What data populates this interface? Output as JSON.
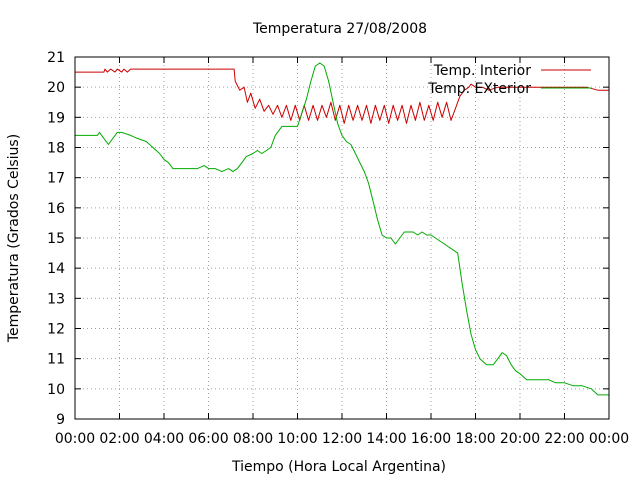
{
  "chart_data": {
    "type": "line",
    "title": "Temperatura 27/08/2008",
    "xlabel": "Tiempo (Hora Local Argentina)",
    "ylabel": "Temperatura (Grados Celsius)",
    "x_ticks": [
      "00:00",
      "02:00",
      "04:00",
      "06:00",
      "08:00",
      "10:00",
      "12:00",
      "14:00",
      "16:00",
      "18:00",
      "20:00",
      "22:00",
      "00:00"
    ],
    "y_ticks": [
      9,
      10,
      11,
      12,
      13,
      14,
      15,
      16,
      17,
      18,
      19,
      20,
      21
    ],
    "ylim": [
      9,
      21
    ],
    "x_unit": "hour of day",
    "xlim": [
      0,
      24
    ],
    "grid": true,
    "legend_position": "top-right",
    "series": [
      {
        "name": "Temp. Interior",
        "color": "#cc0000",
        "x": [
          0.0,
          1.3,
          1.35,
          1.45,
          1.6,
          1.8,
          1.9,
          2.1,
          2.2,
          2.35,
          2.5,
          2.55,
          7.15,
          7.2,
          7.4,
          7.6,
          7.75,
          7.9,
          8.1,
          8.3,
          8.5,
          8.7,
          8.9,
          9.1,
          9.3,
          9.5,
          9.7,
          9.9,
          10.1,
          10.3,
          10.5,
          10.7,
          10.9,
          11.1,
          11.3,
          11.5,
          11.7,
          11.9,
          12.1,
          12.3,
          12.5,
          12.7,
          12.9,
          13.1,
          13.3,
          13.5,
          13.7,
          13.9,
          14.1,
          14.3,
          14.5,
          14.7,
          14.9,
          15.1,
          15.3,
          15.5,
          15.7,
          15.9,
          16.1,
          16.3,
          16.5,
          16.7,
          16.9,
          17.1,
          17.3,
          17.5,
          17.7,
          17.8,
          18.0,
          18.3,
          18.6,
          19.0,
          19.5,
          20.0,
          21.0,
          22.0,
          23.0,
          23.5,
          24.0
        ],
        "y": [
          20.5,
          20.5,
          20.6,
          20.5,
          20.6,
          20.5,
          20.6,
          20.5,
          20.6,
          20.5,
          20.6,
          20.6,
          20.6,
          20.2,
          19.9,
          20.0,
          19.5,
          19.8,
          19.3,
          19.6,
          19.2,
          19.4,
          19.1,
          19.4,
          19.0,
          19.4,
          18.9,
          19.4,
          18.9,
          19.4,
          18.9,
          19.4,
          18.9,
          19.4,
          19.0,
          19.5,
          18.9,
          19.4,
          18.8,
          19.4,
          18.9,
          19.4,
          18.9,
          19.4,
          18.8,
          19.4,
          18.9,
          19.4,
          18.8,
          19.4,
          18.9,
          19.4,
          18.8,
          19.4,
          18.9,
          19.5,
          18.9,
          19.4,
          18.9,
          19.5,
          19.0,
          19.5,
          18.9,
          19.3,
          19.7,
          19.9,
          20.0,
          20.1,
          20.0,
          20.0,
          19.9,
          20.0,
          20.0,
          20.0,
          20.0,
          20.0,
          20.0,
          19.9,
          19.9
        ]
      },
      {
        "name": "Temp. EXterior",
        "color": "#00aa00",
        "x": [
          0.0,
          0.5,
          1.0,
          1.1,
          1.3,
          1.5,
          1.7,
          1.9,
          2.1,
          2.5,
          2.8,
          3.2,
          3.5,
          3.8,
          4.0,
          4.2,
          4.4,
          4.6,
          4.8,
          5.0,
          5.2,
          5.5,
          5.8,
          6.0,
          6.3,
          6.6,
          6.9,
          7.1,
          7.3,
          7.5,
          7.7,
          8.0,
          8.2,
          8.4,
          8.6,
          8.8,
          9.0,
          9.3,
          9.6,
          10.0,
          10.4,
          10.6,
          10.8,
          11.0,
          11.2,
          11.4,
          11.6,
          11.8,
          12.0,
          12.2,
          12.4,
          12.6,
          12.8,
          13.0,
          13.2,
          13.4,
          13.6,
          13.8,
          14.0,
          14.2,
          14.4,
          14.6,
          14.8,
          15.0,
          15.2,
          15.4,
          15.6,
          15.8,
          16.0,
          16.2,
          16.4,
          16.6,
          16.8,
          17.0,
          17.2,
          17.4,
          17.6,
          17.8,
          18.0,
          18.2,
          18.5,
          18.8,
          19.0,
          19.2,
          19.4,
          19.6,
          19.8,
          20.0,
          20.3,
          21.0,
          21.3,
          21.6,
          22.0,
          22.4,
          22.8,
          23.2,
          23.5,
          24.0
        ],
        "y": [
          18.4,
          18.4,
          18.4,
          18.5,
          18.3,
          18.1,
          18.3,
          18.5,
          18.5,
          18.4,
          18.3,
          18.2,
          18.0,
          17.8,
          17.6,
          17.5,
          17.3,
          17.3,
          17.3,
          17.3,
          17.3,
          17.3,
          17.4,
          17.3,
          17.3,
          17.2,
          17.3,
          17.2,
          17.3,
          17.5,
          17.7,
          17.8,
          17.9,
          17.8,
          17.9,
          18.0,
          18.4,
          18.7,
          18.7,
          18.7,
          19.6,
          20.2,
          20.7,
          20.8,
          20.7,
          20.2,
          19.5,
          18.8,
          18.4,
          18.2,
          18.1,
          17.8,
          17.5,
          17.2,
          16.8,
          16.2,
          15.6,
          15.1,
          15.0,
          15.0,
          14.8,
          15.0,
          15.2,
          15.2,
          15.2,
          15.1,
          15.2,
          15.1,
          15.1,
          15.0,
          14.9,
          14.8,
          14.7,
          14.6,
          14.5,
          13.5,
          12.6,
          11.8,
          11.3,
          11.0,
          10.8,
          10.8,
          11.0,
          11.2,
          11.1,
          10.8,
          10.6,
          10.5,
          10.3,
          10.3,
          10.3,
          10.2,
          10.2,
          10.1,
          10.1,
          10.0,
          9.8,
          9.8
        ]
      }
    ]
  }
}
